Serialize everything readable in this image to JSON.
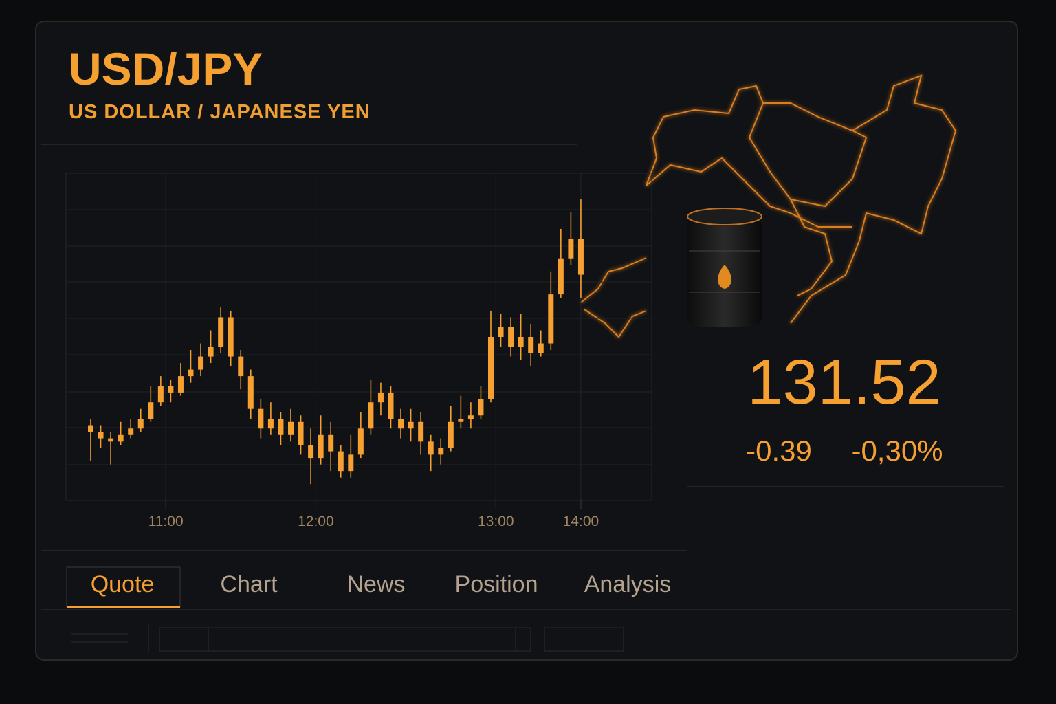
{
  "header": {
    "title": "USD/JPY",
    "subtitle": "US DOLLAR / JAPANESE YEN"
  },
  "quote": {
    "price": "131.52",
    "change": "-0.39",
    "change_percent": "-0,30%"
  },
  "tabs": [
    {
      "label": "Quote",
      "active": true
    },
    {
      "label": "Chart",
      "active": false
    },
    {
      "label": "News",
      "active": false
    },
    {
      "label": "Position",
      "active": false
    },
    {
      "label": "Analysis",
      "active": false
    }
  ],
  "chart_data": {
    "type": "candlestick",
    "color": "#f5a030",
    "ylim": [
      0,
      100
    ],
    "grid": true,
    "xticks": [
      {
        "value": 7.5,
        "label": "11:00"
      },
      {
        "value": 22.5,
        "label": "12:00"
      },
      {
        "value": 40.5,
        "label": "13:00"
      },
      {
        "value": 49,
        "label": "14:00"
      }
    ],
    "open": [
      23,
      21,
      19,
      18,
      20,
      22,
      25,
      30,
      35,
      33,
      38,
      40,
      44,
      47,
      56,
      44,
      38,
      28,
      22,
      25,
      20,
      24,
      17,
      13,
      20,
      15,
      9,
      14,
      22,
      30,
      33,
      25,
      22,
      24,
      18,
      14,
      16,
      24,
      25,
      26,
      31,
      50,
      53,
      47,
      50,
      45,
      48,
      63,
      74,
      80
    ],
    "high": [
      25,
      23,
      21,
      24,
      25,
      28,
      35,
      38,
      37,
      42,
      46,
      48,
      52,
      59,
      58,
      46,
      40,
      31,
      30,
      27,
      28,
      26,
      22,
      26,
      24,
      17,
      20,
      27,
      37,
      36,
      35,
      28,
      28,
      27,
      20,
      19,
      29,
      32,
      30,
      35,
      58,
      57,
      56,
      57,
      54,
      52,
      70,
      83,
      88,
      92
    ],
    "low": [
      12,
      16,
      11,
      17,
      19,
      21,
      24,
      29,
      30,
      32,
      36,
      38,
      42,
      45,
      41,
      34,
      25,
      19,
      20,
      17,
      18,
      14,
      5,
      11,
      9,
      7,
      7,
      13,
      20,
      26,
      22,
      19,
      18,
      14,
      9,
      11,
      15,
      22,
      22,
      25,
      30,
      47,
      44,
      43,
      41,
      44,
      46,
      62,
      72,
      62
    ],
    "close": [
      21,
      19,
      18,
      20,
      22,
      25,
      30,
      35,
      33,
      38,
      40,
      44,
      47,
      56,
      44,
      38,
      28,
      22,
      25,
      20,
      24,
      17,
      13,
      20,
      15,
      9,
      14,
      22,
      30,
      33,
      25,
      22,
      24,
      18,
      14,
      16,
      24,
      25,
      26,
      31,
      50,
      53,
      47,
      50,
      45,
      48,
      63,
      74,
      80,
      69
    ]
  }
}
